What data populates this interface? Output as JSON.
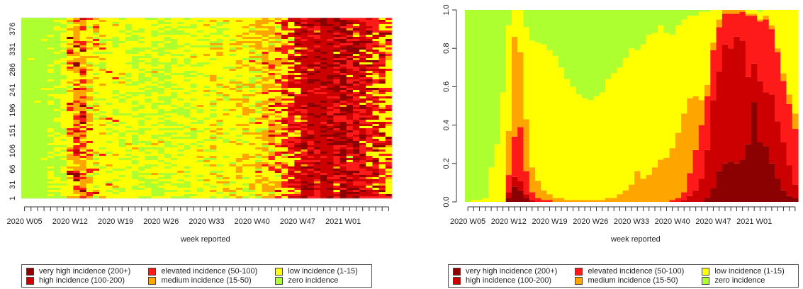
{
  "colors": {
    "very_high": "#8b0000",
    "high": "#cc0000",
    "elevated": "#ff1a1a",
    "medium": "#ffa500",
    "low": "#ffff00",
    "zero": "#adff2f"
  },
  "legend_items": [
    {
      "label": "very high incidence (200+)",
      "color": "#8b0000"
    },
    {
      "label": "elevated incidence (50-100)",
      "color": "#ff1a1a"
    },
    {
      "label": "low incidence (1-15)",
      "color": "#ffff00"
    },
    {
      "label": "high incidence (100-200)",
      "color": "#cc0000"
    },
    {
      "label": "medium incidence (15-50)",
      "color": "#ffa500"
    },
    {
      "label": "zero incidence",
      "color": "#adff2f"
    }
  ],
  "chart_data": [
    {
      "type": "heatmap",
      "title": "",
      "xlabel": "week reported",
      "ylabel": "",
      "x_tick_labels": [
        "2020 W05",
        "2020 W12",
        "2020 W19",
        "2020 W26",
        "2020 W33",
        "2020 W40",
        "2020 W47",
        "2021 W01"
      ],
      "y_tick_labels": [
        "1",
        "31",
        "66",
        "106",
        "151",
        "196",
        "241",
        "286",
        "331",
        "376"
      ],
      "y_range": [
        1,
        401
      ],
      "weeks_shown": "2020 W05 to 2021 W08"
    },
    {
      "type": "area",
      "stacked": true,
      "title": "",
      "xlabel": "week reported",
      "ylabel": "",
      "ylim": [
        0,
        1
      ],
      "y_tick_labels": [
        "0.0",
        "0.2",
        "0.4",
        "0.6",
        "0.8",
        "1.0"
      ],
      "x_tick_labels": [
        "2020 W05",
        "2020 W12",
        "2020 W19",
        "2020 W26",
        "2020 W33",
        "2020 W40",
        "2020 W47",
        "2021 W01"
      ],
      "x": [
        "2020 W05",
        "2020 W06",
        "2020 W07",
        "2020 W08",
        "2020 W09",
        "2020 W10",
        "2020 W11",
        "2020 W12",
        "2020 W13",
        "2020 W14",
        "2020 W15",
        "2020 W16",
        "2020 W17",
        "2020 W18",
        "2020 W19",
        "2020 W20",
        "2020 W21",
        "2020 W22",
        "2020 W23",
        "2020 W24",
        "2020 W25",
        "2020 W26",
        "2020 W27",
        "2020 W28",
        "2020 W29",
        "2020 W30",
        "2020 W31",
        "2020 W32",
        "2020 W33",
        "2020 W34",
        "2020 W35",
        "2020 W36",
        "2020 W37",
        "2020 W38",
        "2020 W39",
        "2020 W40",
        "2020 W41",
        "2020 W42",
        "2020 W43",
        "2020 W44",
        "2020 W45",
        "2020 W46",
        "2020 W47",
        "2020 W48",
        "2020 W49",
        "2020 W50",
        "2020 W51",
        "2020 W52",
        "2020 W53",
        "2021 W01",
        "2021 W02",
        "2021 W03",
        "2021 W04",
        "2021 W05",
        "2021 W06",
        "2021 W07",
        "2021 W08"
      ],
      "series": [
        {
          "name": "very high incidence (200+)",
          "values": [
            0,
            0,
            0,
            0,
            0,
            0,
            0,
            0.02,
            0.08,
            0.06,
            0.02,
            0,
            0,
            0,
            0,
            0,
            0,
            0,
            0,
            0,
            0,
            0,
            0,
            0,
            0,
            0,
            0,
            0,
            0,
            0,
            0,
            0,
            0,
            0,
            0,
            0,
            0,
            0,
            0,
            0,
            0,
            0.02,
            0.07,
            0.16,
            0.2,
            0.21,
            0.2,
            0.22,
            0.3,
            0.52,
            0.31,
            0.29,
            0.2,
            0.12,
            0.06,
            0.03,
            0.02
          ]
        },
        {
          "name": "high incidence (100-200)",
          "values": [
            0,
            0,
            0,
            0,
            0,
            0,
            0,
            0.03,
            0.05,
            0.05,
            0.02,
            0.01,
            0,
            0,
            0,
            0,
            0,
            0,
            0,
            0,
            0,
            0,
            0,
            0,
            0,
            0,
            0,
            0,
            0,
            0,
            0,
            0,
            0,
            0,
            0,
            0,
            0,
            0.01,
            0.03,
            0.06,
            0.12,
            0.25,
            0.46,
            0.52,
            0.62,
            0.59,
            0.66,
            0.62,
            0.35,
            0.2,
            0.32,
            0.28,
            0.36,
            0.3,
            0.25,
            0.16,
            0.07
          ]
        },
        {
          "name": "elevated incidence (50-100)",
          "values": [
            0,
            0,
            0,
            0,
            0,
            0,
            0,
            0.09,
            0.21,
            0.28,
            0.12,
            0.04,
            0.02,
            0.01,
            0.01,
            0,
            0,
            0,
            0,
            0,
            0,
            0,
            0,
            0,
            0,
            0,
            0,
            0,
            0,
            0,
            0,
            0,
            0,
            0,
            0,
            0.01,
            0.02,
            0.04,
            0.12,
            0.21,
            0.28,
            0.28,
            0.26,
            0.23,
            0.16,
            0.18,
            0.12,
            0.15,
            0.32,
            0.25,
            0.31,
            0.38,
            0.34,
            0.36,
            0.32,
            0.32,
            0.29
          ]
        },
        {
          "name": "medium incidence (15-50)",
          "values": [
            0,
            0,
            0,
            0,
            0,
            0,
            0,
            0.23,
            0.52,
            0.39,
            0.27,
            0.13,
            0.09,
            0.05,
            0.03,
            0.02,
            0.02,
            0.01,
            0.01,
            0.01,
            0.01,
            0.01,
            0.01,
            0.01,
            0.02,
            0.02,
            0.04,
            0.06,
            0.09,
            0.16,
            0.12,
            0.14,
            0.18,
            0.22,
            0.23,
            0.27,
            0.34,
            0.41,
            0.39,
            0.28,
            0.13,
            0.06,
            0.04,
            0.04,
            0.02,
            0.02,
            0.02,
            0.01,
            0.01,
            0.01,
            0.01,
            0.02,
            0.02,
            0.02,
            0.04,
            0.05,
            0.08
          ]
        },
        {
          "name": "low incidence (1-15)",
          "values": [
            0,
            0.01,
            0.01,
            0.02,
            0.18,
            0.3,
            0.57,
            0.55,
            0.14,
            0.22,
            0.48,
            0.66,
            0.72,
            0.76,
            0.75,
            0.74,
            0.68,
            0.63,
            0.59,
            0.55,
            0.53,
            0.52,
            0.54,
            0.56,
            0.62,
            0.65,
            0.66,
            0.69,
            0.71,
            0.63,
            0.7,
            0.73,
            0.7,
            0.7,
            0.65,
            0.59,
            0.56,
            0.49,
            0.43,
            0.42,
            0.46,
            0.38,
            0.17,
            0.05,
            0.0,
            0.0,
            0.0,
            0.0,
            0.02,
            0.02,
            0.04,
            0.03,
            0.08,
            0.2,
            0.33,
            0.44,
            0.54
          ]
        },
        {
          "name": "zero incidence",
          "values": [
            1,
            0.99,
            0.99,
            0.98,
            0.82,
            0.7,
            0.43,
            0.08,
            0.0,
            0.0,
            0.09,
            0.16,
            0.17,
            0.18,
            0.21,
            0.24,
            0.3,
            0.36,
            0.4,
            0.44,
            0.46,
            0.47,
            0.45,
            0.43,
            0.36,
            0.33,
            0.3,
            0.25,
            0.2,
            0.21,
            0.18,
            0.13,
            0.12,
            0.08,
            0.12,
            0.13,
            0.08,
            0.05,
            0.03,
            0.03,
            0.01,
            0.01,
            0.0,
            0.0,
            0.0,
            0.0,
            0.0,
            0.0,
            0.0,
            0.0,
            0.01,
            0.0,
            0.0,
            0.0,
            0.0,
            0.0,
            0.0
          ]
        }
      ]
    }
  ]
}
